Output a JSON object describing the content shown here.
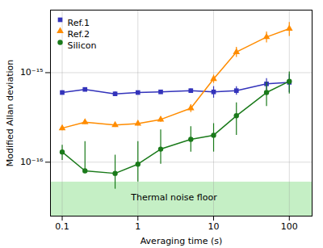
{
  "chart_data": {
    "type": "line",
    "xlabel": "Averaging time (s)",
    "ylabel": "Modified Allan deviation",
    "log": true,
    "xlim": [
      0.07,
      200
    ],
    "ylim": [
      2.5e-17,
      5e-15
    ],
    "xticks": [
      0.1,
      1,
      10,
      100
    ],
    "yticks": [
      {
        "value": 1e-16,
        "label": "10⁻¹⁶"
      },
      {
        "value": 1e-15,
        "label": "10⁻¹⁵"
      }
    ],
    "grid": true,
    "legend": "upper left",
    "x": [
      0.1,
      0.2,
      0.5,
      1.0,
      2.0,
      5.0,
      10.0,
      20.0,
      50.0,
      100.0
    ],
    "series": [
      {
        "name": "Ref.1",
        "color": "#3333bb",
        "marker": "square",
        "values": [
          6e-16,
          6.5e-16,
          5.8e-16,
          6e-16,
          6.1e-16,
          6.3e-16,
          6.1e-16,
          6.3e-16,
          7.5e-16,
          7.8e-16
        ],
        "yerr_lo": [
          3e-17,
          3e-17,
          3e-17,
          2e-17,
          2e-17,
          3e-17,
          9e-17,
          7e-17,
          1.1e-16,
          1.8e-16
        ],
        "yerr_hi": [
          3e-17,
          3e-17,
          3e-17,
          2e-17,
          2e-17,
          3e-17,
          9e-17,
          7e-17,
          1.1e-16,
          1.8e-16
        ]
      },
      {
        "name": "Ref.2",
        "color": "#ff8c00",
        "marker": "triangle",
        "values": [
          2.4e-16,
          2.8e-16,
          2.6e-16,
          2.7e-16,
          3e-16,
          4e-16,
          8.5e-16,
          1.7e-15,
          2.5e-15,
          3.1e-15
        ],
        "yerr_lo": [
          1.5e-17,
          1.5e-17,
          1.5e-17,
          1.5e-17,
          2e-17,
          4e-17,
          9e-17,
          2.2e-16,
          3.5e-16,
          5.5e-16
        ],
        "yerr_hi": [
          1.5e-17,
          1.5e-17,
          1.5e-17,
          1.5e-17,
          2e-17,
          4e-17,
          9e-17,
          2.2e-16,
          3.5e-16,
          5.5e-16
        ]
      },
      {
        "name": "Silicon",
        "color": "#1a7a1a",
        "marker": "circle",
        "values": [
          1.3e-16,
          8e-17,
          7.5e-17,
          9.5e-17,
          1.4e-16,
          1.8e-16,
          2e-16,
          3.3e-16,
          6e-16,
          8e-16
        ],
        "yerr_lo": [
          2.5e-17,
          4e-18,
          2.5e-17,
          3.5e-17,
          4.5e-17,
          5e-17,
          7e-17,
          1.3e-16,
          1.8e-16,
          2.2e-16
        ],
        "yerr_hi": [
          2.5e-17,
          9e-17,
          4.5e-17,
          7.5e-17,
          9e-17,
          7e-17,
          7e-17,
          1.3e-16,
          1.8e-16,
          2.2e-16
        ]
      }
    ],
    "band": {
      "from": 2.5e-17,
      "to": 6e-17,
      "color": "#c5efc5"
    },
    "annotations": [
      {
        "text": "Thermal noise floor",
        "x": 3.0,
        "y": 4e-17
      }
    ]
  }
}
